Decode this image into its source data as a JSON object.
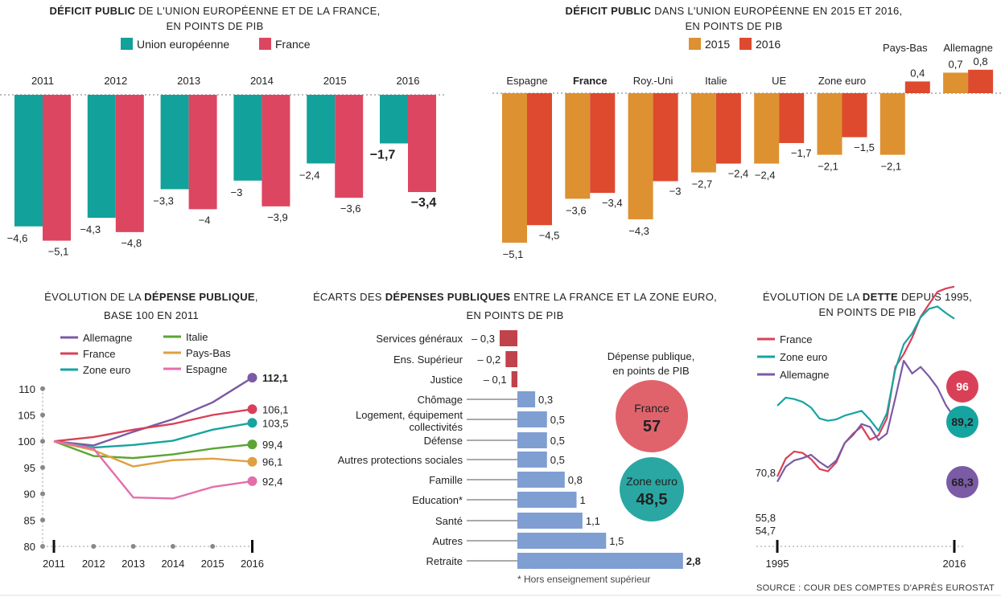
{
  "colors": {
    "eu": "#12a19b",
    "france": "#dd4660",
    "c2015": "#dd9130",
    "c2016": "#dd4a2e",
    "allemagne": "#7b5aa6",
    "italie": "#5ca534",
    "paysbas": "#dfa040",
    "espagne": "#e56ea9",
    "france_line": "#d94057",
    "zone_euro_line": "#16a4a0",
    "neg_bar": "#c0424a",
    "pos_bar": "#7f9ed2",
    "grey": "#888888"
  },
  "source": "SOURCE : COUR DES COMPTES D'APRÈS EUROSTAT",
  "chart_data": [
    {
      "type": "bar",
      "title_bold": "DÉFICIT PUBLIC",
      "title_rest": " DE L'UNION EUROPÉENNE ET DE LA FRANCE,",
      "subtitle": "EN POINTS DE PIB",
      "categories": [
        "2011",
        "2012",
        "2013",
        "2014",
        "2015",
        "2016"
      ],
      "series": [
        {
          "name": "Union européenne",
          "values": [
            -4.6,
            -4.3,
            -3.3,
            -3,
            -2.4,
            -1.7
          ],
          "labels": [
            "−4,6",
            "−4,3",
            "−3,3",
            "−3",
            "−2,4",
            "−1,7"
          ]
        },
        {
          "name": "France",
          "values": [
            -5.1,
            -4.8,
            -4,
            -3.9,
            -3.6,
            -3.4
          ],
          "labels": [
            "−5,1",
            "−4,8",
            "−4",
            "−3,9",
            "−3,6",
            "−3,4"
          ]
        }
      ]
    },
    {
      "type": "bar",
      "title_bold": "DÉFICIT PUBLIC",
      "title_rest": " DANS L'UNION EUROPÉENNE EN 2015 ET 2016,",
      "subtitle": "EN POINTS DE PIB",
      "categories": [
        "Espagne",
        "France",
        "Roy.-Uni",
        "Italie",
        "UE",
        "Zone euro",
        "Pays-Bas",
        "Allemagne"
      ],
      "series": [
        {
          "name": "2015",
          "values": [
            -5.1,
            -3.6,
            -4.3,
            -2.7,
            -2.4,
            -2.1,
            -2.1,
            0.7
          ],
          "labels": [
            "−5,1",
            "−3,6",
            "−4,3",
            "−2,7",
            "−2,4",
            "−2,1",
            "−2,1",
            "0,7"
          ]
        },
        {
          "name": "2016",
          "values": [
            -4.5,
            -3.4,
            -3,
            -2.4,
            -1.7,
            -1.5,
            0.4,
            0.8
          ],
          "labels": [
            "−4,5",
            "−3,4",
            "−3",
            "−2,4",
            "−1,7",
            "−1,5",
            "0,4",
            "0,8"
          ]
        }
      ]
    },
    {
      "type": "line",
      "title_rest_a": "ÉVOLUTION DE LA ",
      "title_bold": "DÉPENSE PUBLIQUE",
      "title_rest_b": ",",
      "subtitle": "BASE 100 EN 2011",
      "x": [
        "2011",
        "2012",
        "2013",
        "2014",
        "2015",
        "2016"
      ],
      "yticks": [
        80,
        85,
        90,
        95,
        100,
        105,
        110
      ],
      "ylim": [
        80,
        112
      ],
      "series": [
        {
          "name": "Allemagne",
          "values": [
            100,
            99.2,
            101.8,
            104.2,
            107.4,
            112.1
          ],
          "label": "112,1"
        },
        {
          "name": "France",
          "values": [
            100,
            100.8,
            102.2,
            103.3,
            105,
            106.1
          ],
          "label": "106,1"
        },
        {
          "name": "Zone euro",
          "values": [
            100,
            98.8,
            99.3,
            100.1,
            102.2,
            103.5
          ],
          "label": "103,5"
        },
        {
          "name": "Italie",
          "values": [
            100,
            97.2,
            96.8,
            97.5,
            98.6,
            99.4
          ],
          "label": "99,4"
        },
        {
          "name": "Pays-Bas",
          "values": [
            100,
            98.3,
            95.2,
            96.4,
            96.7,
            96.1
          ],
          "label": "96,1"
        },
        {
          "name": "Espagne",
          "values": [
            100,
            98.6,
            89.3,
            89.1,
            91.3,
            92.4
          ],
          "label": "92,4"
        }
      ]
    },
    {
      "type": "bar",
      "title_rest_a": "ÉCARTS DES ",
      "title_bold": "DÉPENSES PUBLIQUES",
      "title_rest_b": " ENTRE LA FRANCE ET LA ZONE EURO,",
      "subtitle": "EN POINTS DE PIB",
      "categories": [
        "Services généraux",
        "Ens. Supérieur",
        "Justice",
        "Chômage",
        "Logement, équipement collectivités",
        "Défense",
        "Autres protections sociales",
        "Famille",
        "Education*",
        "Santé",
        "Autres",
        "Retraite"
      ],
      "category_lines": [
        [
          "Services généraux"
        ],
        [
          "Ens. Supérieur"
        ],
        [
          "Justice"
        ],
        [
          "Chômage"
        ],
        [
          "Logement, équipement",
          "collectivités"
        ],
        [
          "Défense"
        ],
        [
          "Autres protections sociales"
        ],
        [
          "Famille"
        ],
        [
          "Education*"
        ],
        [
          "Santé"
        ],
        [
          "Autres"
        ],
        [
          "Retraite"
        ]
      ],
      "values": [
        -0.3,
        -0.2,
        -0.1,
        0.3,
        0.5,
        0.5,
        0.5,
        0.8,
        1,
        1.1,
        1.5,
        2.8
      ],
      "labels": [
        "– 0,3",
        "– 0,2",
        "– 0,1",
        "0,3",
        "0,5",
        "0,5",
        "0,5",
        "0,8",
        "1",
        "1,1",
        "1,5",
        "2,8"
      ],
      "footnote": "* Hors enseignement supérieur",
      "bubble_title_1": "Dépense publique,",
      "bubble_title_2": "en points de PIB",
      "bubbles": [
        {
          "name": "France",
          "value": "57"
        },
        {
          "name": "Zone euro",
          "value": "48,5"
        }
      ]
    },
    {
      "type": "line",
      "title_rest_a": "ÉVOLUTION DE LA ",
      "title_bold": "DETTE",
      "title_rest_b": " DEPUIS 1995,",
      "subtitle": "EN POINTS DE PIB",
      "x_start": 1995,
      "x_end": 2016,
      "x_labels": [
        "1995",
        "2016"
      ],
      "start_labels": [
        "70,8",
        "55,8",
        "54,7"
      ],
      "series": [
        {
          "name": "France",
          "start": 55.8,
          "end": 96,
          "end_label": "96",
          "values": [
            55.8,
            59.6,
            61.1,
            60.8,
            59.5,
            57.4,
            56.9,
            58.8,
            62.9,
            64.9,
            66.4,
            63.6,
            64.5,
            68.1,
            79,
            81.7,
            85.2,
            89.6,
            92.3,
            94.9,
            95.6,
            96
          ]
        },
        {
          "name": "Zone euro",
          "start": 70.8,
          "end": 89.2,
          "end_label": "89,2",
          "values": [
            70.8,
            72.5,
            72.2,
            71.6,
            70.4,
            68.1,
            67.6,
            67.9,
            68.7,
            69.2,
            69.7,
            67.8,
            65.5,
            69.2,
            78.5,
            83.8,
            86.1,
            89.5,
            91.3,
            91.8,
            90.4,
            89.2
          ]
        },
        {
          "name": "Allemagne",
          "start": 54.7,
          "end": 68.3,
          "end_label": "68,3",
          "values": [
            54.7,
            57.9,
            59.2,
            59.7,
            60.4,
            58.9,
            57.7,
            59.2,
            62.9,
            64.6,
            66.9,
            66.3,
            63.5,
            64.9,
            72.4,
            80.3,
            77.6,
            79,
            77,
            74.6,
            70.9,
            68.3
          ]
        }
      ]
    }
  ]
}
